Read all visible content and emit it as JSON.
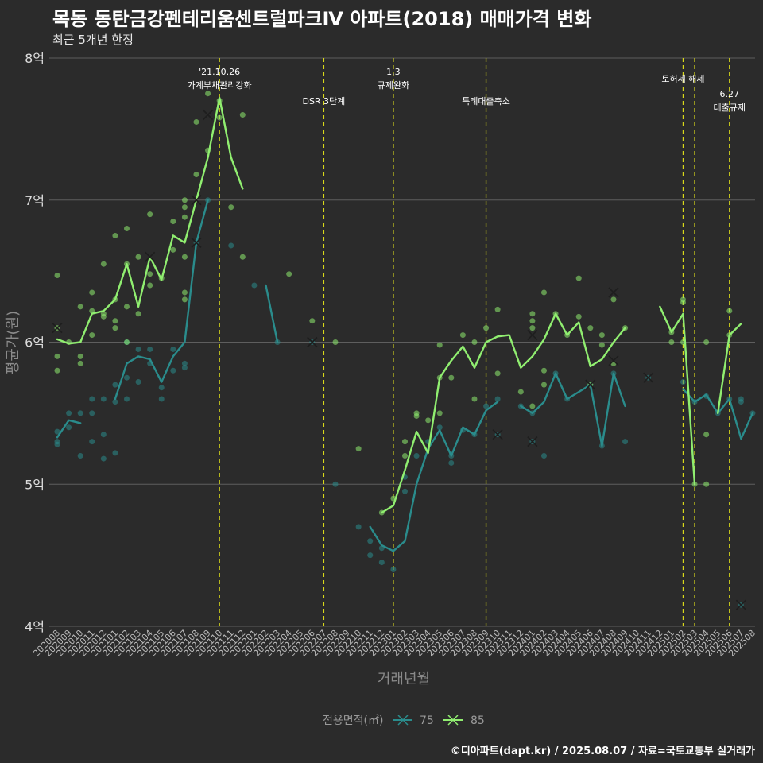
{
  "chart_data": {
    "type": "line",
    "title": "목동 동탄금강펜테리움센트럴파크Ⅳ 아파트(2018) 매매가격 변화",
    "subtitle": "최근 5개년 한정",
    "xlabel": "거래년월",
    "ylabel": "평균가(원)",
    "caption": "©디아파트(dapt.kr) / 2025.08.07 / 자료=국토교통부 실거래가",
    "ylim": [
      4,
      8
    ],
    "yticks": [
      {
        "value": 4,
        "label": "4억"
      },
      {
        "value": 5,
        "label": "5억"
      },
      {
        "value": 6,
        "label": "6억"
      },
      {
        "value": 7,
        "label": "7억"
      },
      {
        "value": 8,
        "label": "8억"
      }
    ],
    "grid": true,
    "legend": {
      "title": "전용면적(㎡)",
      "position": "bottom"
    },
    "categories": [
      "202008",
      "202009",
      "202010",
      "202011",
      "202012",
      "202101",
      "202102",
      "202103",
      "202104",
      "202105",
      "202106",
      "202107",
      "202108",
      "202109",
      "202110",
      "202111",
      "202112",
      "202201",
      "202202",
      "202203",
      "202204",
      "202205",
      "202206",
      "202207",
      "202208",
      "202209",
      "202210",
      "202211",
      "202212",
      "202301",
      "202302",
      "202303",
      "202304",
      "202305",
      "202306",
      "202307",
      "202308",
      "202309",
      "202310",
      "202311",
      "202312",
      "202401",
      "202402",
      "202403",
      "202404",
      "202405",
      "202406",
      "202407",
      "202408",
      "202409",
      "202410",
      "202411",
      "202412",
      "202501",
      "202502",
      "202503",
      "202504",
      "202505",
      "202506",
      "202507",
      "202508"
    ],
    "series": [
      {
        "name": "75",
        "color": "#2a8c8c",
        "values": [
          5.33,
          5.45,
          5.43,
          null,
          null,
          5.6,
          5.85,
          5.9,
          5.88,
          5.72,
          5.9,
          6.0,
          6.7,
          7.0,
          null,
          6.68,
          null,
          null,
          6.4,
          6.0,
          null,
          null,
          6.0,
          null,
          null,
          5.0,
          null,
          4.7,
          4.57,
          4.53,
          4.6,
          5.0,
          5.25,
          5.38,
          5.2,
          5.4,
          5.35,
          5.52,
          5.58,
          null,
          5.55,
          5.5,
          5.58,
          5.78,
          5.6,
          5.65,
          5.7,
          5.27,
          5.78,
          5.55,
          null,
          5.75,
          null,
          null,
          5.67,
          5.58,
          5.63,
          5.5,
          5.6,
          5.32,
          5.5
        ],
        "points": [
          [
            0,
            5.37
          ],
          [
            0,
            5.3
          ],
          [
            0,
            5.28
          ],
          [
            1,
            5.5
          ],
          [
            1,
            5.4
          ],
          [
            2,
            5.5
          ],
          [
            2,
            5.2
          ],
          [
            3,
            5.6
          ],
          [
            3,
            5.5
          ],
          [
            3,
            5.3
          ],
          [
            4,
            5.35
          ],
          [
            4,
            5.6
          ],
          [
            4,
            5.18
          ],
          [
            5,
            5.58
          ],
          [
            5,
            5.22
          ],
          [
            5,
            5.7
          ],
          [
            6,
            5.6
          ],
          [
            6,
            6.0
          ],
          [
            6,
            5.75
          ],
          [
            7,
            5.95
          ],
          [
            7,
            5.72
          ],
          [
            8,
            5.95
          ],
          [
            8,
            5.85
          ],
          [
            9,
            5.6
          ],
          [
            9,
            5.68
          ],
          [
            10,
            5.8
          ],
          [
            10,
            5.95
          ],
          [
            11,
            5.82
          ],
          [
            11,
            5.85
          ],
          [
            12,
            6.7
          ],
          [
            13,
            7.0
          ],
          [
            15,
            6.68
          ],
          [
            17,
            6.4
          ],
          [
            19,
            6.0
          ],
          [
            22,
            6.0
          ],
          [
            24,
            5.0
          ],
          [
            26,
            4.7
          ],
          [
            27,
            4.5
          ],
          [
            27,
            4.6
          ],
          [
            28,
            4.45
          ],
          [
            28,
            4.55
          ],
          [
            29,
            4.4
          ],
          [
            30,
            4.95
          ],
          [
            30,
            5.05
          ],
          [
            31,
            5.2
          ],
          [
            32,
            5.3
          ],
          [
            33,
            5.4
          ],
          [
            34,
            5.15
          ],
          [
            34,
            5.2
          ],
          [
            35,
            5.38
          ],
          [
            36,
            5.35
          ],
          [
            37,
            5.55
          ],
          [
            38,
            5.35
          ],
          [
            38,
            5.6
          ],
          [
            40,
            5.55
          ],
          [
            41,
            5.5
          ],
          [
            41,
            5.3
          ],
          [
            42,
            5.2
          ],
          [
            43,
            5.78
          ],
          [
            44,
            5.6
          ],
          [
            46,
            5.7
          ],
          [
            47,
            5.27
          ],
          [
            48,
            5.78
          ],
          [
            49,
            5.3
          ],
          [
            51,
            5.75
          ],
          [
            54,
            5.72
          ],
          [
            55,
            5.58
          ],
          [
            56,
            5.62
          ],
          [
            57,
            5.5
          ],
          [
            58,
            5.6
          ],
          [
            59,
            5.6
          ],
          [
            59,
            5.58
          ],
          [
            60,
            5.5
          ],
          [
            59,
            4.15
          ]
        ],
        "crosses": [
          [
            12,
            6.7
          ],
          [
            22,
            6.0
          ],
          [
            38,
            5.35
          ],
          [
            41,
            5.3
          ],
          [
            46,
            5.7
          ],
          [
            51,
            5.75
          ],
          [
            59,
            4.15
          ]
        ]
      },
      {
        "name": "85",
        "color": "#90ee70",
        "values": [
          6.02,
          5.99,
          6.0,
          6.2,
          6.22,
          6.3,
          6.55,
          6.25,
          6.6,
          6.44,
          6.75,
          6.7,
          7.0,
          7.3,
          7.72,
          7.3,
          7.08,
          null,
          null,
          null,
          6.48,
          null,
          6.15,
          null,
          6.0,
          null,
          5.25,
          null,
          4.8,
          4.85,
          5.1,
          5.37,
          5.22,
          5.75,
          5.87,
          5.97,
          5.82,
          6.0,
          6.04,
          6.05,
          5.82,
          5.9,
          6.02,
          6.2,
          6.05,
          6.14,
          5.83,
          5.88,
          6.0,
          6.1,
          null,
          null,
          6.25,
          6.07,
          6.2,
          5.0,
          null,
          5.5,
          6.05,
          6.13,
          null
        ],
        "points": [
          [
            0,
            6.47
          ],
          [
            0,
            6.1
          ],
          [
            0,
            5.9
          ],
          [
            0,
            5.8
          ],
          [
            1,
            6.0
          ],
          [
            2,
            6.25
          ],
          [
            2,
            5.9
          ],
          [
            2,
            5.85
          ],
          [
            3,
            6.35
          ],
          [
            3,
            6.22
          ],
          [
            3,
            6.05
          ],
          [
            4,
            6.55
          ],
          [
            4,
            6.2
          ],
          [
            4,
            6.18
          ],
          [
            5,
            6.75
          ],
          [
            5,
            6.3
          ],
          [
            5,
            6.15
          ],
          [
            5,
            6.1
          ],
          [
            6,
            6.8
          ],
          [
            6,
            6.55
          ],
          [
            6,
            6.25
          ],
          [
            6,
            6.0
          ],
          [
            7,
            6.6
          ],
          [
            7,
            6.2
          ],
          [
            8,
            6.9
          ],
          [
            8,
            6.48
          ],
          [
            8,
            6.4
          ],
          [
            9,
            6.45
          ],
          [
            10,
            6.85
          ],
          [
            10,
            6.65
          ],
          [
            11,
            7.0
          ],
          [
            11,
            6.95
          ],
          [
            11,
            6.88
          ],
          [
            11,
            6.6
          ],
          [
            11,
            6.35
          ],
          [
            11,
            6.3
          ],
          [
            12,
            7.55
          ],
          [
            12,
            7.18
          ],
          [
            13,
            7.75
          ],
          [
            13,
            7.35
          ],
          [
            14,
            7.7
          ],
          [
            14,
            7.58
          ],
          [
            15,
            6.95
          ],
          [
            16,
            7.6
          ],
          [
            16,
            6.6
          ],
          [
            20,
            6.48
          ],
          [
            22,
            6.15
          ],
          [
            24,
            6.0
          ],
          [
            26,
            5.25
          ],
          [
            28,
            4.8
          ],
          [
            29,
            4.9
          ],
          [
            30,
            5.2
          ],
          [
            30,
            5.3
          ],
          [
            31,
            5.5
          ],
          [
            31,
            5.48
          ],
          [
            32,
            5.45
          ],
          [
            33,
            5.98
          ],
          [
            33,
            5.75
          ],
          [
            33,
            5.5
          ],
          [
            34,
            5.75
          ],
          [
            35,
            6.05
          ],
          [
            36,
            6.0
          ],
          [
            36,
            5.6
          ],
          [
            37,
            6.1
          ],
          [
            38,
            6.23
          ],
          [
            38,
            5.78
          ],
          [
            40,
            5.65
          ],
          [
            41,
            6.2
          ],
          [
            41,
            6.15
          ],
          [
            41,
            6.1
          ],
          [
            41,
            5.55
          ],
          [
            42,
            6.35
          ],
          [
            42,
            5.8
          ],
          [
            42,
            5.7
          ],
          [
            43,
            6.2
          ],
          [
            44,
            6.05
          ],
          [
            45,
            6.45
          ],
          [
            45,
            6.18
          ],
          [
            46,
            6.1
          ],
          [
            46,
            5.7
          ],
          [
            47,
            6.05
          ],
          [
            47,
            5.98
          ],
          [
            48,
            6.3
          ],
          [
            48,
            5.85
          ],
          [
            49,
            6.1
          ],
          [
            53,
            6.07
          ],
          [
            53,
            6.0
          ],
          [
            54,
            6.3
          ],
          [
            54,
            6.28
          ],
          [
            54,
            6.0
          ],
          [
            55,
            5.0
          ],
          [
            56,
            6.0
          ],
          [
            56,
            5.35
          ],
          [
            56,
            5.0
          ],
          [
            58,
            6.22
          ],
          [
            58,
            6.05
          ]
        ],
        "crosses": [
          [
            0,
            6.1
          ],
          [
            8,
            6.6
          ],
          [
            12,
            7.0
          ],
          [
            13,
            7.6
          ],
          [
            22,
            6.0
          ],
          [
            41,
            6.05
          ],
          [
            48,
            6.35
          ],
          [
            48,
            5.87
          ]
        ]
      }
    ],
    "events": [
      {
        "x": 14.0,
        "label": "'21.10.26\n가계부채관리강화",
        "level": 0
      },
      {
        "x": 23.0,
        "label": "DSR 3단계",
        "level": 1
      },
      {
        "x": 29.0,
        "label": "1.3\n규제완화",
        "level": 0
      },
      {
        "x": 37.0,
        "label": "특례대출축소",
        "level": 1
      },
      {
        "x": 54.0,
        "label": "토허제 해제",
        "level": 0
      },
      {
        "x": 55.0,
        "label": "",
        "level": 0
      },
      {
        "x": 58.0,
        "label": "6.27\n대출규제",
        "level": 1
      }
    ]
  }
}
